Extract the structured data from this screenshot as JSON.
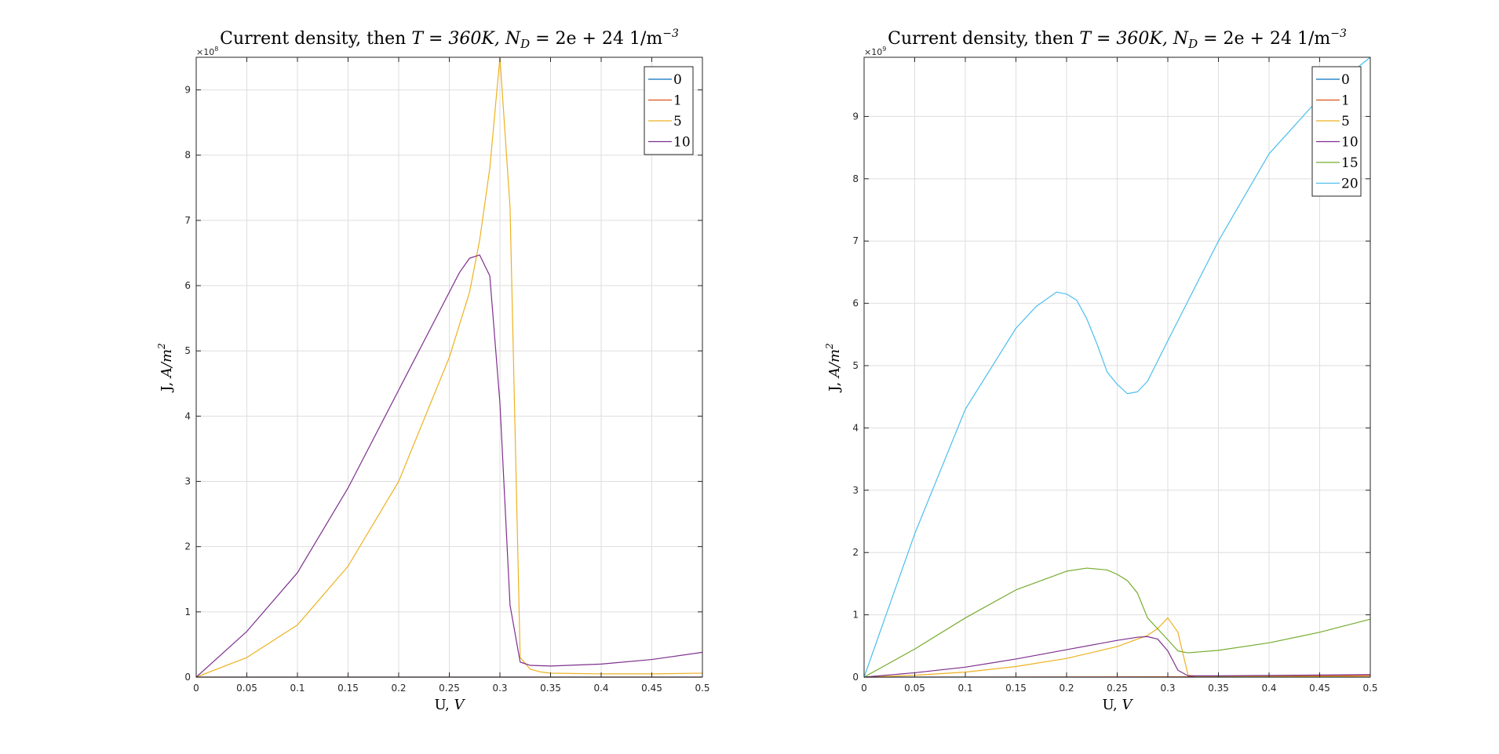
{
  "chart_data": [
    {
      "type": "line",
      "title": "Current density, then T = 360K, N_D = 2e + 24 1/m^-3",
      "title_parts": {
        "lead": "Current density, then ",
        "T": "T = 360K, ",
        "N": "N",
        "N_sub": "D",
        "rest": " = 2e + 24 1/m",
        "sup": "−3"
      },
      "xlabel": "U, V",
      "xlabel_parts": {
        "lead": "U, ",
        "var": "V"
      },
      "ylabel": "J, A/m^2",
      "ylabel_parts": {
        "lead": "J, ",
        "var": "A/m",
        "sup": "2"
      },
      "y_exponent": "×10^8",
      "y_exponent_parts": {
        "base": "×10",
        "sup": "8"
      },
      "xlim": [
        0,
        0.5
      ],
      "ylim": [
        0,
        9.5
      ],
      "xticks": [
        0,
        0.05,
        0.1,
        0.15,
        0.2,
        0.25,
        0.3,
        0.35,
        0.4,
        0.45,
        0.5
      ],
      "xtick_labels": [
        "0",
        "0.05",
        "0.1",
        "0.15",
        "0.2",
        "0.25",
        "0.3",
        "0.35",
        "0.4",
        "0.45",
        "0.5"
      ],
      "yticks": [
        0,
        1,
        2,
        3,
        4,
        5,
        6,
        7,
        8,
        9
      ],
      "ytick_labels": [
        "0",
        "1",
        "2",
        "3",
        "4",
        "5",
        "6",
        "7",
        "8",
        "9"
      ],
      "grid": true,
      "legend_position": "top-right",
      "series": [
        {
          "name": "0",
          "color": "#0072BD",
          "x": [
            0,
            0.5
          ],
          "y": [
            0,
            0
          ]
        },
        {
          "name": "1",
          "color": "#D95319",
          "x": [
            0,
            0.5
          ],
          "y": [
            0,
            0
          ]
        },
        {
          "name": "5",
          "color": "#EDB120",
          "x": [
            0,
            0.05,
            0.1,
            0.15,
            0.2,
            0.25,
            0.27,
            0.28,
            0.29,
            0.3,
            0.31,
            0.32,
            0.33,
            0.34,
            0.35,
            0.4,
            0.45,
            0.5
          ],
          "y": [
            0,
            0.3,
            0.8,
            1.7,
            3.0,
            4.9,
            5.9,
            6.7,
            7.8,
            9.5,
            7.2,
            0.3,
            0.12,
            0.08,
            0.06,
            0.05,
            0.05,
            0.06
          ]
        },
        {
          "name": "10",
          "color": "#7E2F8E",
          "x": [
            0,
            0.05,
            0.1,
            0.15,
            0.2,
            0.25,
            0.26,
            0.27,
            0.28,
            0.29,
            0.3,
            0.31,
            0.32,
            0.33,
            0.35,
            0.4,
            0.45,
            0.5
          ],
          "y": [
            0,
            0.7,
            1.6,
            2.9,
            4.4,
            5.9,
            6.2,
            6.42,
            6.47,
            6.15,
            4.2,
            1.1,
            0.23,
            0.18,
            0.17,
            0.2,
            0.27,
            0.38
          ]
        }
      ]
    },
    {
      "type": "line",
      "title": "Current density, then T = 360K, N_D = 2e + 24 1/m^-3",
      "title_parts": {
        "lead": "Current density, then ",
        "T": "T = 360K, ",
        "N": "N",
        "N_sub": "D",
        "rest": " = 2e + 24 1/m",
        "sup": "−3"
      },
      "xlabel": "U, V",
      "xlabel_parts": {
        "lead": "U, ",
        "var": "V"
      },
      "ylabel": "J, A/m^2",
      "ylabel_parts": {
        "lead": "J, ",
        "var": "A/m",
        "sup": "2"
      },
      "y_exponent": "×10^9",
      "y_exponent_parts": {
        "base": "×10",
        "sup": "9"
      },
      "xlim": [
        0,
        0.5
      ],
      "ylim": [
        0,
        9.95
      ],
      "xticks": [
        0,
        0.05,
        0.1,
        0.15,
        0.2,
        0.25,
        0.3,
        0.35,
        0.4,
        0.45,
        0.5
      ],
      "xtick_labels": [
        "0",
        "0.05",
        "0.1",
        "0.15",
        "0.2",
        "0.25",
        "0.3",
        "0.35",
        "0.4",
        "0.45",
        "0.5"
      ],
      "yticks": [
        0,
        1,
        2,
        3,
        4,
        5,
        6,
        7,
        8,
        9
      ],
      "ytick_labels": [
        "0",
        "1",
        "2",
        "3",
        "4",
        "5",
        "6",
        "7",
        "8",
        "9"
      ],
      "grid": true,
      "legend_position": "top-right",
      "series": [
        {
          "name": "0",
          "color": "#0072BD",
          "x": [
            0,
            0.5
          ],
          "y": [
            0,
            0
          ]
        },
        {
          "name": "1",
          "color": "#D95319",
          "x": [
            0,
            0.3,
            0.32,
            0.5
          ],
          "y": [
            0,
            0.005,
            0.005,
            0.03
          ]
        },
        {
          "name": "5",
          "color": "#EDB120",
          "x": [
            0,
            0.05,
            0.1,
            0.15,
            0.2,
            0.25,
            0.28,
            0.29,
            0.3,
            0.31,
            0.32,
            0.33,
            0.5
          ],
          "y": [
            0,
            0.03,
            0.08,
            0.17,
            0.3,
            0.49,
            0.67,
            0.78,
            0.95,
            0.72,
            0.03,
            0.01,
            0.01
          ]
        },
        {
          "name": "10",
          "color": "#7E2F8E",
          "x": [
            0,
            0.05,
            0.1,
            0.15,
            0.2,
            0.25,
            0.27,
            0.28,
            0.29,
            0.3,
            0.31,
            0.32,
            0.35,
            0.5
          ],
          "y": [
            0,
            0.07,
            0.16,
            0.29,
            0.44,
            0.59,
            0.64,
            0.65,
            0.61,
            0.42,
            0.11,
            0.02,
            0.02,
            0.04
          ]
        },
        {
          "name": "15",
          "color": "#77AC30",
          "x": [
            0,
            0.05,
            0.1,
            0.15,
            0.2,
            0.22,
            0.24,
            0.25,
            0.26,
            0.27,
            0.28,
            0.3,
            0.31,
            0.32,
            0.35,
            0.4,
            0.45,
            0.5
          ],
          "y": [
            0,
            0.45,
            0.95,
            1.4,
            1.7,
            1.75,
            1.72,
            1.65,
            1.55,
            1.35,
            0.95,
            0.6,
            0.42,
            0.39,
            0.43,
            0.55,
            0.72,
            0.93
          ]
        },
        {
          "name": "20",
          "color": "#4DBEEE",
          "x": [
            0,
            0.05,
            0.1,
            0.15,
            0.17,
            0.19,
            0.2,
            0.21,
            0.22,
            0.23,
            0.24,
            0.25,
            0.26,
            0.27,
            0.28,
            0.3,
            0.35,
            0.4,
            0.45,
            0.5
          ],
          "y": [
            0,
            2.3,
            4.3,
            5.6,
            5.95,
            6.18,
            6.15,
            6.05,
            5.75,
            5.35,
            4.9,
            4.7,
            4.55,
            4.58,
            4.75,
            5.4,
            7.0,
            8.4,
            9.3,
            9.95
          ]
        }
      ]
    }
  ]
}
